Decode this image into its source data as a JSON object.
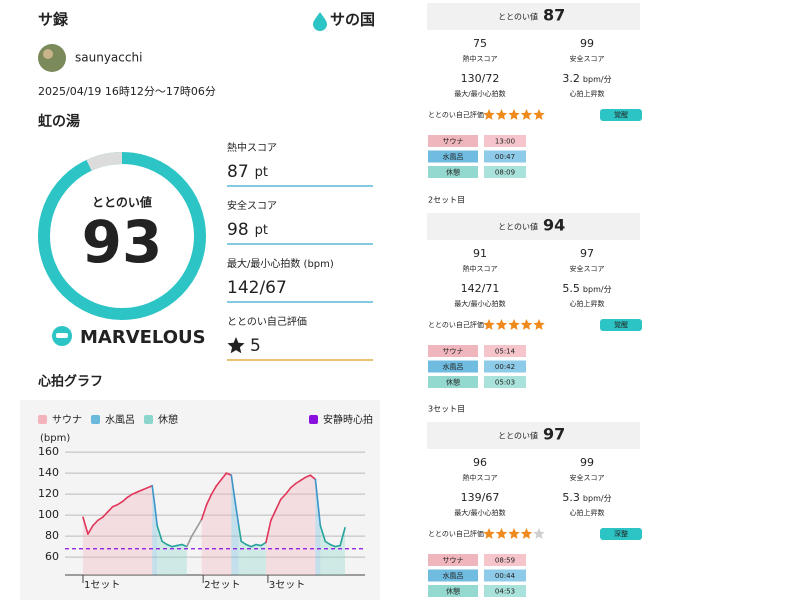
{
  "header": {
    "title": "サ録",
    "logo": "サの国"
  },
  "user": {
    "name": "saunyacchi"
  },
  "session": {
    "date": "2025/04/19 16時12分〜17時06分",
    "facility": "虹の湯"
  },
  "score": {
    "label": "ととのい値",
    "value": 93,
    "rank": "MARVELOUS"
  },
  "metrics": [
    {
      "label": "熱中スコア",
      "value": 87,
      "unit": "pt"
    },
    {
      "label": "安全スコア",
      "value": 98,
      "unit": "pt"
    },
    {
      "label": "最大/最小心拍数 (bpm)",
      "value": "142/67"
    },
    {
      "label": "ととのい自己評価",
      "value": 5
    }
  ],
  "heart_chart": {
    "title": "心拍グラフ",
    "y_label": "(bpm)",
    "legend": [
      {
        "name": "サウナ",
        "color": "#f2b3bb",
        "line_color": "#e0365a"
      },
      {
        "name": "水風呂",
        "color": "#6ab8dc",
        "line_color": "#3d94c8"
      },
      {
        "name": "休憩",
        "color": "#8ad6cc",
        "line_color": "#25a39b"
      }
    ],
    "resting": {
      "name": "安静時心拍",
      "color": "#8a10e0",
      "value": 68
    },
    "ylim": [
      43,
      162
    ],
    "yticks": [
      60,
      80,
      100,
      120,
      140,
      160
    ],
    "xlim": [
      0,
      54
    ],
    "xticks": [
      {
        "value": 0,
        "label": "1セット"
      },
      {
        "value": 24.3,
        "label": "2セット"
      },
      {
        "value": 37.4,
        "label": "3セット"
      }
    ],
    "x": [
      0,
      1,
      2,
      3,
      4,
      5,
      6,
      7,
      8,
      9,
      10,
      11,
      12,
      13,
      14,
      14.5,
      15,
      16,
      17,
      18,
      19,
      20,
      21,
      22,
      23,
      24,
      25,
      26,
      27,
      28,
      29,
      30,
      30.7,
      31.5,
      32,
      33,
      34,
      35,
      36,
      37,
      38,
      39,
      40,
      41,
      42,
      43,
      44,
      45,
      46,
      47,
      47.5,
      48,
      49,
      50,
      51,
      52,
      53
    ],
    "values": [
      98,
      82,
      90,
      95,
      98,
      103,
      108,
      110,
      113,
      117,
      120,
      122,
      124,
      126,
      128,
      110,
      90,
      75,
      72,
      70,
      71,
      72,
      70,
      80,
      88,
      96,
      110,
      120,
      128,
      134,
      140,
      138,
      115,
      90,
      75,
      72,
      70,
      72,
      71,
      74,
      95,
      105,
      115,
      120,
      126,
      130,
      133,
      136,
      138,
      134,
      112,
      90,
      75,
      72,
      70,
      71,
      88
    ],
    "phases": [
      "サウナ",
      "サウナ",
      "サウナ",
      "サウナ",
      "サウナ",
      "サウナ",
      "サウナ",
      "サウナ",
      "サウナ",
      "サウナ",
      "サウナ",
      "サウナ",
      "サウナ",
      "サウナ",
      "サウナ",
      "水風呂",
      "水風呂",
      "休憩",
      "休憩",
      "休憩",
      "休憩",
      "休憩",
      "休憩",
      null,
      null,
      null,
      "サウナ",
      "サウナ",
      "サウナ",
      "サウナ",
      "サウナ",
      "サウナ",
      "水風呂",
      "水風呂",
      "休憩",
      "休憩",
      "休憩",
      "休憩",
      "休憩",
      "休憩",
      "サウナ",
      "サウナ",
      "サウナ",
      "サウナ",
      "サウナ",
      "サウナ",
      "サウナ",
      "サウナ",
      "サウナ",
      "サウナ",
      "水風呂",
      "水風呂",
      "休憩",
      "休憩",
      "休憩",
      "休憩",
      "休憩"
    ]
  },
  "sets": [
    {
      "score_label": "ととのい値",
      "score": 87,
      "stats": [
        {
          "value": 75,
          "label": "熱中スコア"
        },
        {
          "value": 99,
          "label": "安全スコア"
        },
        {
          "value": "130/72",
          "label": "最大/最小心拍数"
        },
        {
          "value": 3.2,
          "unit": "bpm/分",
          "label": "心拍上昇数"
        }
      ],
      "eval_label": "ととのい自己評価",
      "rating": 5,
      "badge": "覚醒",
      "phases": [
        {
          "name": "サウナ",
          "time": "13:00"
        },
        {
          "name": "水風呂",
          "time": "00:47"
        },
        {
          "name": "休憩",
          "time": "08:09"
        }
      ]
    },
    {
      "title": "2セット目",
      "score_label": "ととのい値",
      "score": 94,
      "stats": [
        {
          "value": 91,
          "label": "熱中スコア"
        },
        {
          "value": 97,
          "label": "安全スコア"
        },
        {
          "value": "142/71",
          "label": "最大/最小心拍数"
        },
        {
          "value": 5.5,
          "unit": "bpm/分",
          "label": "心拍上昇数"
        }
      ],
      "eval_label": "ととのい自己評価",
      "rating": 5,
      "badge": "覚醒",
      "phases": [
        {
          "name": "サウナ",
          "time": "05:14"
        },
        {
          "name": "水風呂",
          "time": "00:42"
        },
        {
          "name": "休憩",
          "time": "05:03"
        }
      ]
    },
    {
      "title": "3セット目",
      "score_label": "ととのい値",
      "score": 97,
      "stats": [
        {
          "value": 96,
          "label": "熱中スコア"
        },
        {
          "value": 99,
          "label": "安全スコア"
        },
        {
          "value": "139/67",
          "label": "最大/最小心拍数"
        },
        {
          "value": 5.3,
          "unit": "bpm/分",
          "label": "心拍上昇数"
        }
      ],
      "eval_label": "ととのい自己評価",
      "rating": 4,
      "badge": "深整",
      "phases": [
        {
          "name": "サウナ",
          "time": "08:59"
        },
        {
          "name": "水風呂",
          "time": "00:44"
        },
        {
          "name": "休憩",
          "time": "04:53"
        }
      ]
    }
  ]
}
